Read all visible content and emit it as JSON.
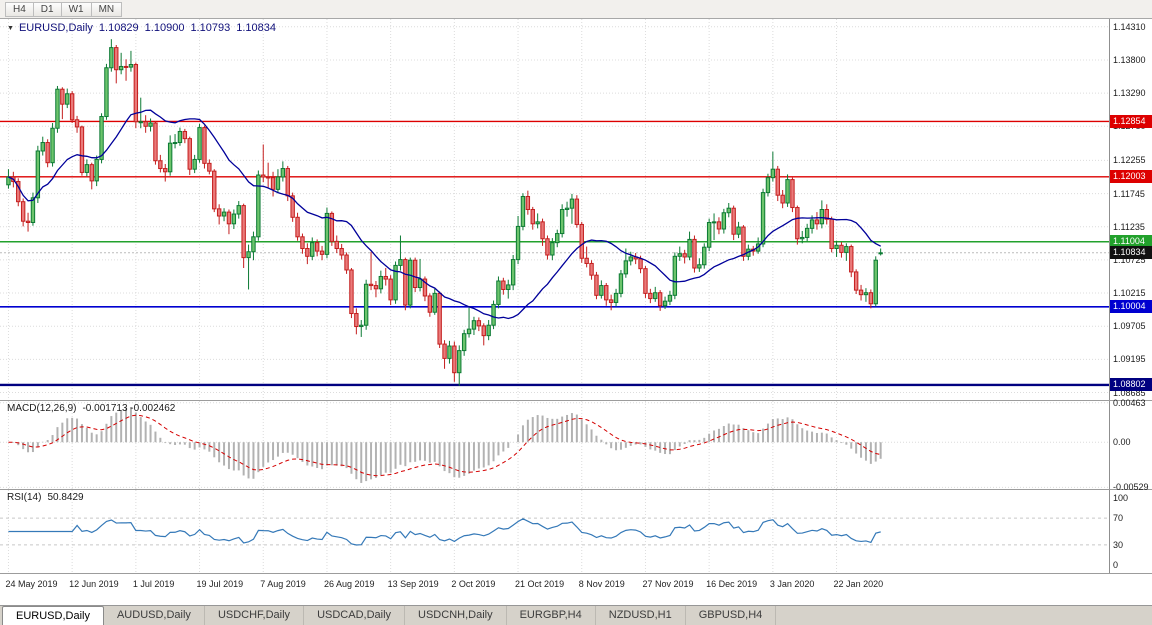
{
  "toolbar": {
    "buttons": [
      "H4",
      "D1",
      "W1",
      "MN"
    ]
  },
  "chart": {
    "symbol_label": "EURUSD,Daily",
    "open": "1.10829",
    "high": "1.10900",
    "low": "1.10793",
    "close": "1.10834"
  },
  "main_axis": {
    "ticks": [
      "1.14310",
      "1.13800",
      "1.13290",
      "1.12780",
      "1.12255",
      "1.11745",
      "1.11235",
      "1.10725",
      "1.10215",
      "1.09705",
      "1.09195",
      "1.08685"
    ]
  },
  "hlines": [
    {
      "price": 1.12854,
      "label": "1.12854",
      "color": "#dd0000",
      "width": 1.4
    },
    {
      "price": 1.12003,
      "label": "1.12003",
      "color": "#dd0000",
      "width": 1.4
    },
    {
      "price": 1.11004,
      "label": "1.11004",
      "color": "#22a12c",
      "width": 1.6
    },
    {
      "price": 1.10004,
      "label": "1.10004",
      "color": "#0000d0",
      "width": 1.6
    },
    {
      "price": 1.08802,
      "label": "1.08802",
      "color": "#000080",
      "width": 2.4
    }
  ],
  "current_price": {
    "label": "1.10834",
    "value": 1.10834,
    "badge_color": "#111111"
  },
  "macd": {
    "label": "MACD(12,26,9)",
    "values_text": "-0.001713 -0.002462",
    "axis": [
      {
        "text": "0.00463",
        "v": 0.00463
      },
      {
        "text": "0.00",
        "v": 0
      },
      {
        "text": "-0.00529",
        "v": -0.00529
      }
    ]
  },
  "rsi": {
    "label": "RSI(14)",
    "value_text": "50.8429",
    "axis": [
      {
        "text": "100",
        "v": 100
      },
      {
        "text": "70",
        "v": 70
      },
      {
        "text": "30",
        "v": 30
      },
      {
        "text": "0",
        "v": 0
      }
    ],
    "levels": [
      70,
      30
    ],
    "range": {
      "max": 112,
      "min": -12
    }
  },
  "date_axis": {
    "candle_step": 13,
    "labels": [
      "24 May 2019",
      "12 Jun 2019",
      "1 Jul 2019",
      "19 Jul 2019",
      "7 Aug 2019",
      "26 Aug 2019",
      "13 Sep 2019",
      "2 Oct 2019",
      "21 Oct 2019",
      "8 Nov 2019",
      "27 Nov 2019",
      "16 Dec 2019",
      "3 Jan 2020",
      "22 Jan 2020"
    ]
  },
  "tabs": [
    {
      "label": "EURUSD,Daily",
      "active": true
    },
    {
      "label": "AUDUSD,Daily",
      "active": false
    },
    {
      "label": "USDCHF,Daily",
      "active": false
    },
    {
      "label": "USDCAD,Daily",
      "active": false
    },
    {
      "label": "USDCNH,Daily",
      "active": false
    },
    {
      "label": "EURGBP,H4",
      "active": false
    },
    {
      "label": "NZDUSD,H1",
      "active": false
    },
    {
      "label": "GBPUSD,H4",
      "active": false
    }
  ],
  "chart_data": {
    "type": "candlestick",
    "symbol": "EURUSD",
    "timeframe": "Daily",
    "title": "EURUSD,Daily 1.10829 1.10900 1.10793 1.10834",
    "price_range": {
      "max": 1.1443,
      "min": 1.0857
    },
    "indicators": {
      "ma_period": 20,
      "macd": [
        12,
        26,
        9
      ],
      "rsi_period": 14
    },
    "colors": {
      "up_stroke": "#0c7a34",
      "up_fill": "#6cc46c",
      "down_stroke": "#c41d1d",
      "down_fill": "#ea7a7a",
      "ma": "#00009a",
      "macd_hist": "#b2b2b2",
      "macd_signal": "#d40000",
      "rsi": "#3579b8"
    },
    "candles": [
      [
        1.1188,
        1.1212,
        1.1182,
        1.12
      ],
      [
        1.12,
        1.1208,
        1.1184,
        1.1193
      ],
      [
        1.1193,
        1.1198,
        1.1155,
        1.1162
      ],
      [
        1.1162,
        1.1167,
        1.1124,
        1.1132
      ],
      [
        1.1132,
        1.1145,
        1.1116,
        1.113
      ],
      [
        1.113,
        1.1176,
        1.1125,
        1.1168
      ],
      [
        1.1168,
        1.1248,
        1.116,
        1.124
      ],
      [
        1.124,
        1.1262,
        1.1233,
        1.1253
      ],
      [
        1.1253,
        1.1258,
        1.1215,
        1.1222
      ],
      [
        1.1222,
        1.1283,
        1.1216,
        1.1275
      ],
      [
        1.1275,
        1.134,
        1.1268,
        1.1335
      ],
      [
        1.1335,
        1.1338,
        1.1289,
        1.1312
      ],
      [
        1.1312,
        1.1336,
        1.1306,
        1.1328
      ],
      [
        1.1328,
        1.1332,
        1.1283,
        1.1288
      ],
      [
        1.1288,
        1.1294,
        1.1268,
        1.1277
      ],
      [
        1.1277,
        1.1279,
        1.1202,
        1.1207
      ],
      [
        1.1207,
        1.1227,
        1.1201,
        1.1219
      ],
      [
        1.1219,
        1.1222,
        1.1181,
        1.1194
      ],
      [
        1.1194,
        1.1233,
        1.1186,
        1.1227
      ],
      [
        1.1227,
        1.1298,
        1.1221,
        1.1293
      ],
      [
        1.1293,
        1.1374,
        1.1288,
        1.1368
      ],
      [
        1.1368,
        1.1412,
        1.1362,
        1.1399
      ],
      [
        1.1399,
        1.1403,
        1.1344,
        1.1365
      ],
      [
        1.1365,
        1.1391,
        1.1358,
        1.137
      ],
      [
        1.137,
        1.1381,
        1.1348,
        1.1369
      ],
      [
        1.1369,
        1.1394,
        1.1362,
        1.1373
      ],
      [
        1.1373,
        1.1376,
        1.1275,
        1.1285
      ],
      [
        1.1285,
        1.1322,
        1.1275,
        1.1285
      ],
      [
        1.1285,
        1.1295,
        1.1268,
        1.1278
      ],
      [
        1.1278,
        1.129,
        1.127,
        1.1283
      ],
      [
        1.1283,
        1.1286,
        1.1219,
        1.1225
      ],
      [
        1.1225,
        1.1234,
        1.1207,
        1.1213
      ],
      [
        1.1213,
        1.122,
        1.1193,
        1.1208
      ],
      [
        1.1208,
        1.1264,
        1.1202,
        1.1252
      ],
      [
        1.1252,
        1.1266,
        1.1244,
        1.1253
      ],
      [
        1.1253,
        1.1276,
        1.1248,
        1.127
      ],
      [
        1.127,
        1.1274,
        1.1252,
        1.1259
      ],
      [
        1.1259,
        1.1262,
        1.1203,
        1.1212
      ],
      [
        1.1212,
        1.1234,
        1.1206,
        1.1227
      ],
      [
        1.1227,
        1.1282,
        1.1222,
        1.1276
      ],
      [
        1.1276,
        1.1279,
        1.1213,
        1.1221
      ],
      [
        1.1221,
        1.1227,
        1.1204,
        1.1209
      ],
      [
        1.1209,
        1.1212,
        1.1146,
        1.1151
      ],
      [
        1.1151,
        1.1158,
        1.1127,
        1.114
      ],
      [
        1.114,
        1.1152,
        1.1132,
        1.1146
      ],
      [
        1.1146,
        1.115,
        1.1112,
        1.1128
      ],
      [
        1.1128,
        1.115,
        1.112,
        1.1143
      ],
      [
        1.1143,
        1.1163,
        1.1136,
        1.1156
      ],
      [
        1.1156,
        1.1159,
        1.106,
        1.1076
      ],
      [
        1.1076,
        1.1096,
        1.1027,
        1.1085
      ],
      [
        1.1085,
        1.1116,
        1.1072,
        1.1108
      ],
      [
        1.1108,
        1.121,
        1.1102,
        1.1203
      ],
      [
        1.1203,
        1.125,
        1.1192,
        1.12
      ],
      [
        1.12,
        1.1222,
        1.1184,
        1.1199
      ],
      [
        1.1199,
        1.1208,
        1.117,
        1.1181
      ],
      [
        1.1181,
        1.1212,
        1.1175,
        1.12
      ],
      [
        1.12,
        1.1224,
        1.1193,
        1.1213
      ],
      [
        1.1213,
        1.1217,
        1.1163,
        1.1171
      ],
      [
        1.1171,
        1.1176,
        1.1131,
        1.1138
      ],
      [
        1.1138,
        1.1145,
        1.1102,
        1.1108
      ],
      [
        1.1108,
        1.1113,
        1.1082,
        1.109
      ],
      [
        1.109,
        1.1098,
        1.1066,
        1.1078
      ],
      [
        1.1078,
        1.1107,
        1.1072,
        1.1099
      ],
      [
        1.1099,
        1.1104,
        1.1078,
        1.1086
      ],
      [
        1.1086,
        1.1094,
        1.1072,
        1.1081
      ],
      [
        1.1081,
        1.1153,
        1.1075,
        1.1144
      ],
      [
        1.1144,
        1.1147,
        1.1094,
        1.1101
      ],
      [
        1.1101,
        1.111,
        1.1083,
        1.109
      ],
      [
        1.109,
        1.1097,
        1.1073,
        1.108
      ],
      [
        1.108,
        1.1084,
        1.1051,
        1.1057
      ],
      [
        1.1057,
        1.106,
        1.0983,
        1.099
      ],
      [
        1.099,
        1.0998,
        1.0958,
        1.097
      ],
      [
        1.097,
        1.098,
        1.0954,
        1.0972
      ],
      [
        1.0972,
        1.1042,
        1.0965,
        1.1035
      ],
      [
        1.1035,
        1.1085,
        1.1026,
        1.1033
      ],
      [
        1.1033,
        1.104,
        1.1015,
        1.1028
      ],
      [
        1.1028,
        1.1056,
        1.1021,
        1.1047
      ],
      [
        1.1047,
        1.106,
        1.1033,
        1.1043
      ],
      [
        1.1043,
        1.1049,
        1.1003,
        1.1011
      ],
      [
        1.1011,
        1.107,
        1.1005,
        1.1064
      ],
      [
        1.1064,
        1.111,
        1.1056,
        1.1073
      ],
      [
        1.1073,
        1.1076,
        1.0995,
        1.1003
      ],
      [
        1.1003,
        1.1076,
        1.0998,
        1.1072
      ],
      [
        1.1072,
        1.1076,
        1.1023,
        1.103
      ],
      [
        1.103,
        1.1074,
        1.1024,
        1.1043
      ],
      [
        1.1043,
        1.1047,
        1.1009,
        1.1017
      ],
      [
        1.1017,
        1.1021,
        1.0985,
        1.0992
      ],
      [
        1.0992,
        1.1028,
        1.0988,
        1.1021
      ],
      [
        1.1021,
        1.1024,
        1.0937,
        1.0943
      ],
      [
        1.0943,
        1.0949,
        1.0905,
        1.0921
      ],
      [
        1.0921,
        1.0948,
        1.0913,
        1.094
      ],
      [
        1.094,
        1.0947,
        1.0885,
        1.0899
      ],
      [
        1.0899,
        1.0941,
        1.0879,
        1.0933
      ],
      [
        1.0933,
        1.0965,
        1.0925,
        1.0959
      ],
      [
        1.0959,
        1.0999,
        1.0953,
        1.0966
      ],
      [
        1.0966,
        1.0985,
        1.0957,
        1.0979
      ],
      [
        1.0979,
        1.0984,
        1.0963,
        1.0971
      ],
      [
        1.0971,
        1.0975,
        1.0941,
        1.0956
      ],
      [
        1.0956,
        1.098,
        1.0949,
        1.0972
      ],
      [
        1.0972,
        1.101,
        1.0966,
        1.1004
      ],
      [
        1.1004,
        1.1047,
        1.0998,
        1.104
      ],
      [
        1.104,
        1.1045,
        1.1019,
        1.1027
      ],
      [
        1.1027,
        1.1042,
        1.1013,
        1.1034
      ],
      [
        1.1034,
        1.108,
        1.1026,
        1.1073
      ],
      [
        1.1073,
        1.114,
        1.1066,
        1.1124
      ],
      [
        1.1124,
        1.1175,
        1.1118,
        1.117
      ],
      [
        1.117,
        1.1179,
        1.1142,
        1.115
      ],
      [
        1.115,
        1.1154,
        1.1119,
        1.1128
      ],
      [
        1.1128,
        1.1144,
        1.1121,
        1.1131
      ],
      [
        1.1131,
        1.1136,
        1.1094,
        1.1105
      ],
      [
        1.1105,
        1.111,
        1.1073,
        1.108
      ],
      [
        1.108,
        1.1106,
        1.1072,
        1.1099
      ],
      [
        1.1099,
        1.1119,
        1.1092,
        1.1113
      ],
      [
        1.1113,
        1.1158,
        1.1107,
        1.115
      ],
      [
        1.115,
        1.1162,
        1.1139,
        1.1152
      ],
      [
        1.1152,
        1.1174,
        1.1128,
        1.1166
      ],
      [
        1.1166,
        1.1172,
        1.1122,
        1.1127
      ],
      [
        1.1127,
        1.1131,
        1.1068,
        1.1075
      ],
      [
        1.1075,
        1.1093,
        1.1061,
        1.1067
      ],
      [
        1.1067,
        1.1072,
        1.1042,
        1.1049
      ],
      [
        1.1049,
        1.1054,
        1.1012,
        1.1018
      ],
      [
        1.1018,
        1.1041,
        1.1013,
        1.1033
      ],
      [
        1.1033,
        1.1037,
        1.1002,
        1.1011
      ],
      [
        1.1011,
        1.1019,
        1.0995,
        1.1007
      ],
      [
        1.1007,
        1.1028,
        1.1001,
        1.1021
      ],
      [
        1.1021,
        1.1057,
        1.1015,
        1.1051
      ],
      [
        1.1051,
        1.109,
        1.1045,
        1.1071
      ],
      [
        1.1071,
        1.1085,
        1.1064,
        1.1077
      ],
      [
        1.1077,
        1.1083,
        1.1066,
        1.1074
      ],
      [
        1.1074,
        1.1079,
        1.1052,
        1.1059
      ],
      [
        1.1059,
        1.1063,
        1.1014,
        1.1021
      ],
      [
        1.1021,
        1.1028,
        1.1006,
        1.1013
      ],
      [
        1.1013,
        1.1031,
        1.1008,
        1.1022
      ],
      [
        1.1022,
        1.1026,
        1.0994,
        1.1002
      ],
      [
        1.1002,
        1.1016,
        1.0997,
        1.1009
      ],
      [
        1.1009,
        1.1025,
        1.1003,
        1.1018
      ],
      [
        1.1018,
        1.1084,
        1.1012,
        1.1078
      ],
      [
        1.1078,
        1.1093,
        1.1071,
        1.1082
      ],
      [
        1.1082,
        1.1088,
        1.1067,
        1.1077
      ],
      [
        1.1077,
        1.1116,
        1.1072,
        1.1104
      ],
      [
        1.1104,
        1.111,
        1.1053,
        1.106
      ],
      [
        1.106,
        1.1075,
        1.1054,
        1.1065
      ],
      [
        1.1065,
        1.1098,
        1.1059,
        1.1092
      ],
      [
        1.1092,
        1.1136,
        1.1086,
        1.113
      ],
      [
        1.113,
        1.1144,
        1.1103,
        1.1131
      ],
      [
        1.1131,
        1.1138,
        1.1112,
        1.112
      ],
      [
        1.112,
        1.1151,
        1.1113,
        1.1145
      ],
      [
        1.1145,
        1.116,
        1.1138,
        1.1152
      ],
      [
        1.1152,
        1.1156,
        1.1103,
        1.1112
      ],
      [
        1.1112,
        1.1131,
        1.1106,
        1.1123
      ],
      [
        1.1123,
        1.1126,
        1.1071,
        1.1078
      ],
      [
        1.1078,
        1.1096,
        1.1072,
        1.1089
      ],
      [
        1.1089,
        1.1094,
        1.1079,
        1.1086
      ],
      [
        1.1086,
        1.1107,
        1.1082,
        1.1097
      ],
      [
        1.1097,
        1.1182,
        1.1092,
        1.1176
      ],
      [
        1.1176,
        1.1205,
        1.117,
        1.1199
      ],
      [
        1.1199,
        1.1239,
        1.1193,
        1.1212
      ],
      [
        1.1212,
        1.1217,
        1.1163,
        1.1172
      ],
      [
        1.1172,
        1.118,
        1.1152,
        1.116
      ],
      [
        1.116,
        1.1204,
        1.1154,
        1.1196
      ],
      [
        1.1196,
        1.1199,
        1.1146,
        1.1153
      ],
      [
        1.1153,
        1.1156,
        1.1096,
        1.1105
      ],
      [
        1.1105,
        1.1117,
        1.1098,
        1.1107
      ],
      [
        1.1107,
        1.1128,
        1.1101,
        1.1121
      ],
      [
        1.1121,
        1.1141,
        1.1113,
        1.1134
      ],
      [
        1.1134,
        1.1146,
        1.1119,
        1.1128
      ],
      [
        1.1128,
        1.1164,
        1.1121,
        1.115
      ],
      [
        1.115,
        1.1158,
        1.1127,
        1.1135
      ],
      [
        1.1135,
        1.1139,
        1.1084,
        1.109
      ],
      [
        1.109,
        1.1102,
        1.1077,
        1.1095
      ],
      [
        1.1095,
        1.11,
        1.1076,
        1.1084
      ],
      [
        1.1084,
        1.1098,
        1.1071,
        1.1093
      ],
      [
        1.1093,
        1.1096,
        1.1046,
        1.1054
      ],
      [
        1.1054,
        1.1058,
        1.102,
        1.1026
      ],
      [
        1.1026,
        1.1034,
        1.101,
        1.1019
      ],
      [
        1.1019,
        1.1029,
        1.1008,
        1.1022
      ],
      [
        1.1022,
        1.1027,
        1.0998,
        1.1005
      ],
      [
        1.1005,
        1.1078,
        1.1001,
        1.1072
      ],
      [
        1.10829,
        1.109,
        1.10793,
        1.10834
      ]
    ]
  }
}
